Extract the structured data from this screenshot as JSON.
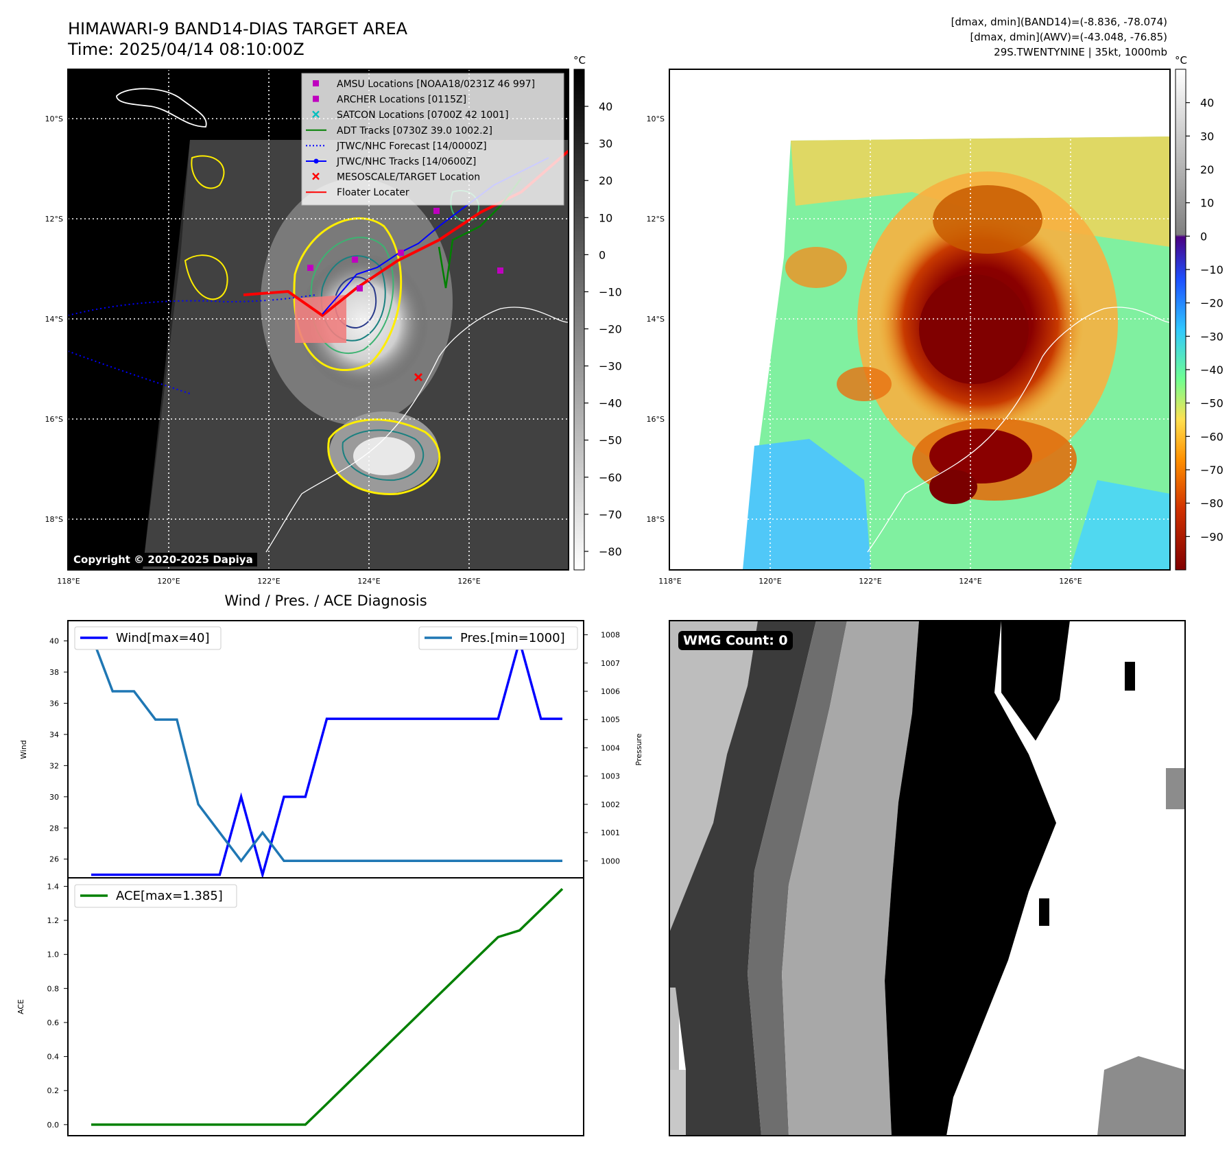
{
  "header": {
    "title": "HIMAWARI-9 BAND14-DIAS TARGET AREA",
    "time": "Time: 2025/04/14 08:10:00Z",
    "info_lines": [
      "[dmax, dmin](BAND14)=(-8.836, -78.074)",
      "[dmax, dmin](AWV)=(-43.048, -76.85)",
      "29S.TWENTYNINE | 35kt, 1000mb"
    ]
  },
  "colors": {
    "wind": "#0000ff",
    "pressure": "#1f77b4",
    "ace": "#008000",
    "floater": "#ff0000",
    "marker_magenta": "#bf00bf",
    "marker_cyan": "#00bfbf",
    "adt": "#008000"
  },
  "copyright": "Copyright © 2020-2025 Dapiya",
  "wmg_count": "WMG Count: 0",
  "legend": [
    {
      "label": "AMSU Locations [NOAA18/0231Z 46 997]",
      "icon": "square-marker",
      "color": "#bf00bf"
    },
    {
      "label": "ARCHER Locations [0115Z]",
      "icon": "square-marker",
      "color": "#bf00bf"
    },
    {
      "label": "SATCON Locations [0700Z 42 1001]",
      "icon": "x-marker",
      "color": "#00bfbf"
    },
    {
      "label": "ADT Tracks [0730Z 39.0 1002.2]",
      "icon": "line",
      "color": "#008000"
    },
    {
      "label": "JTWC/NHC Forecast [14/0000Z]",
      "icon": "dotted-line",
      "color": "#0000ff"
    },
    {
      "label": "JTWC/NHC Tracks [14/0600Z]",
      "icon": "line-dot",
      "color": "#0000ff"
    },
    {
      "label": "MESOSCALE/TARGET Location",
      "icon": "x-marker",
      "color": "#ff0000"
    },
    {
      "label": "Floater Locater",
      "icon": "line",
      "color": "#ff0000"
    }
  ],
  "chart_data": [
    {
      "type": "heatmap",
      "title": "HIMAWARI-9 BAND14-DIAS TARGET AREA",
      "colorbar": {
        "unit": "°C",
        "ticks": [
          40,
          30,
          20,
          10,
          0,
          -10,
          -20,
          -30,
          -40,
          -50,
          -60,
          -70,
          -80
        ],
        "colormap": "grayscale"
      },
      "x_ticks": [
        "118°E",
        "120°E",
        "122°E",
        "124°E",
        "126°E"
      ],
      "y_ticks": [
        "10°S",
        "12°S",
        "14°S",
        "16°S",
        "18°S"
      ],
      "target_location": {
        "lon": 125.0,
        "lat": -15.2
      }
    },
    {
      "type": "heatmap",
      "colorbar": {
        "unit": "°C",
        "ticks": [
          40,
          30,
          20,
          10,
          0,
          -10,
          -20,
          -30,
          -40,
          -50,
          -60,
          -70,
          -80,
          -90
        ],
        "colormap": "jet-like"
      },
      "x_ticks": [
        "118°E",
        "120°E",
        "122°E",
        "124°E",
        "126°E"
      ],
      "y_ticks": [
        "10°S",
        "12°S",
        "14°S",
        "16°S",
        "18°S"
      ]
    },
    {
      "type": "line",
      "title": "Wind / Pres. / ACE Diagnosis",
      "ylabel": "Wind",
      "ylabel_right": "Pressure",
      "y_ticks": [
        40,
        38,
        36,
        34,
        32,
        30,
        28,
        26
      ],
      "y2_ticks": [
        1008,
        1007,
        1006,
        1005,
        1004,
        1003,
        1002,
        1001,
        1000
      ],
      "ylim": [
        24.8,
        41.3
      ],
      "y2lim": [
        999.4,
        1008.5
      ],
      "series": [
        {
          "name": "Wind[max=40]",
          "axis": "left",
          "values": [
            25,
            25,
            25,
            25,
            25,
            25,
            25,
            30,
            25,
            30,
            30,
            35,
            35,
            35,
            35,
            35,
            35,
            35,
            35,
            35,
            40,
            35,
            35
          ]
        },
        {
          "name": "Pres.[min=1000]",
          "axis": "right",
          "values": [
            1008,
            1006,
            1006,
            1005,
            1005,
            1002,
            1001,
            1000,
            1001,
            1000,
            1000,
            1000,
            1000,
            1000,
            1000,
            1000,
            1000,
            1000,
            1000,
            1000,
            1000,
            1000,
            1000
          ]
        }
      ]
    },
    {
      "type": "line",
      "ylabel": "ACE",
      "y_ticks": [
        1.4,
        1.2,
        1.0,
        0.8,
        0.6,
        0.4,
        0.2,
        0.0
      ],
      "ylim": [
        -0.065,
        1.45
      ],
      "series": [
        {
          "name": "ACE[max=1.385]",
          "values": [
            0,
            0,
            0,
            0,
            0,
            0,
            0,
            0,
            0,
            0,
            0,
            0.122,
            0.245,
            0.367,
            0.49,
            0.612,
            0.735,
            0.857,
            0.98,
            1.102,
            1.141,
            1.263,
            1.385
          ]
        }
      ]
    },
    {
      "type": "heatmap",
      "colormap": "grayscale-classes",
      "annotation": "WMG Count: 0"
    }
  ]
}
